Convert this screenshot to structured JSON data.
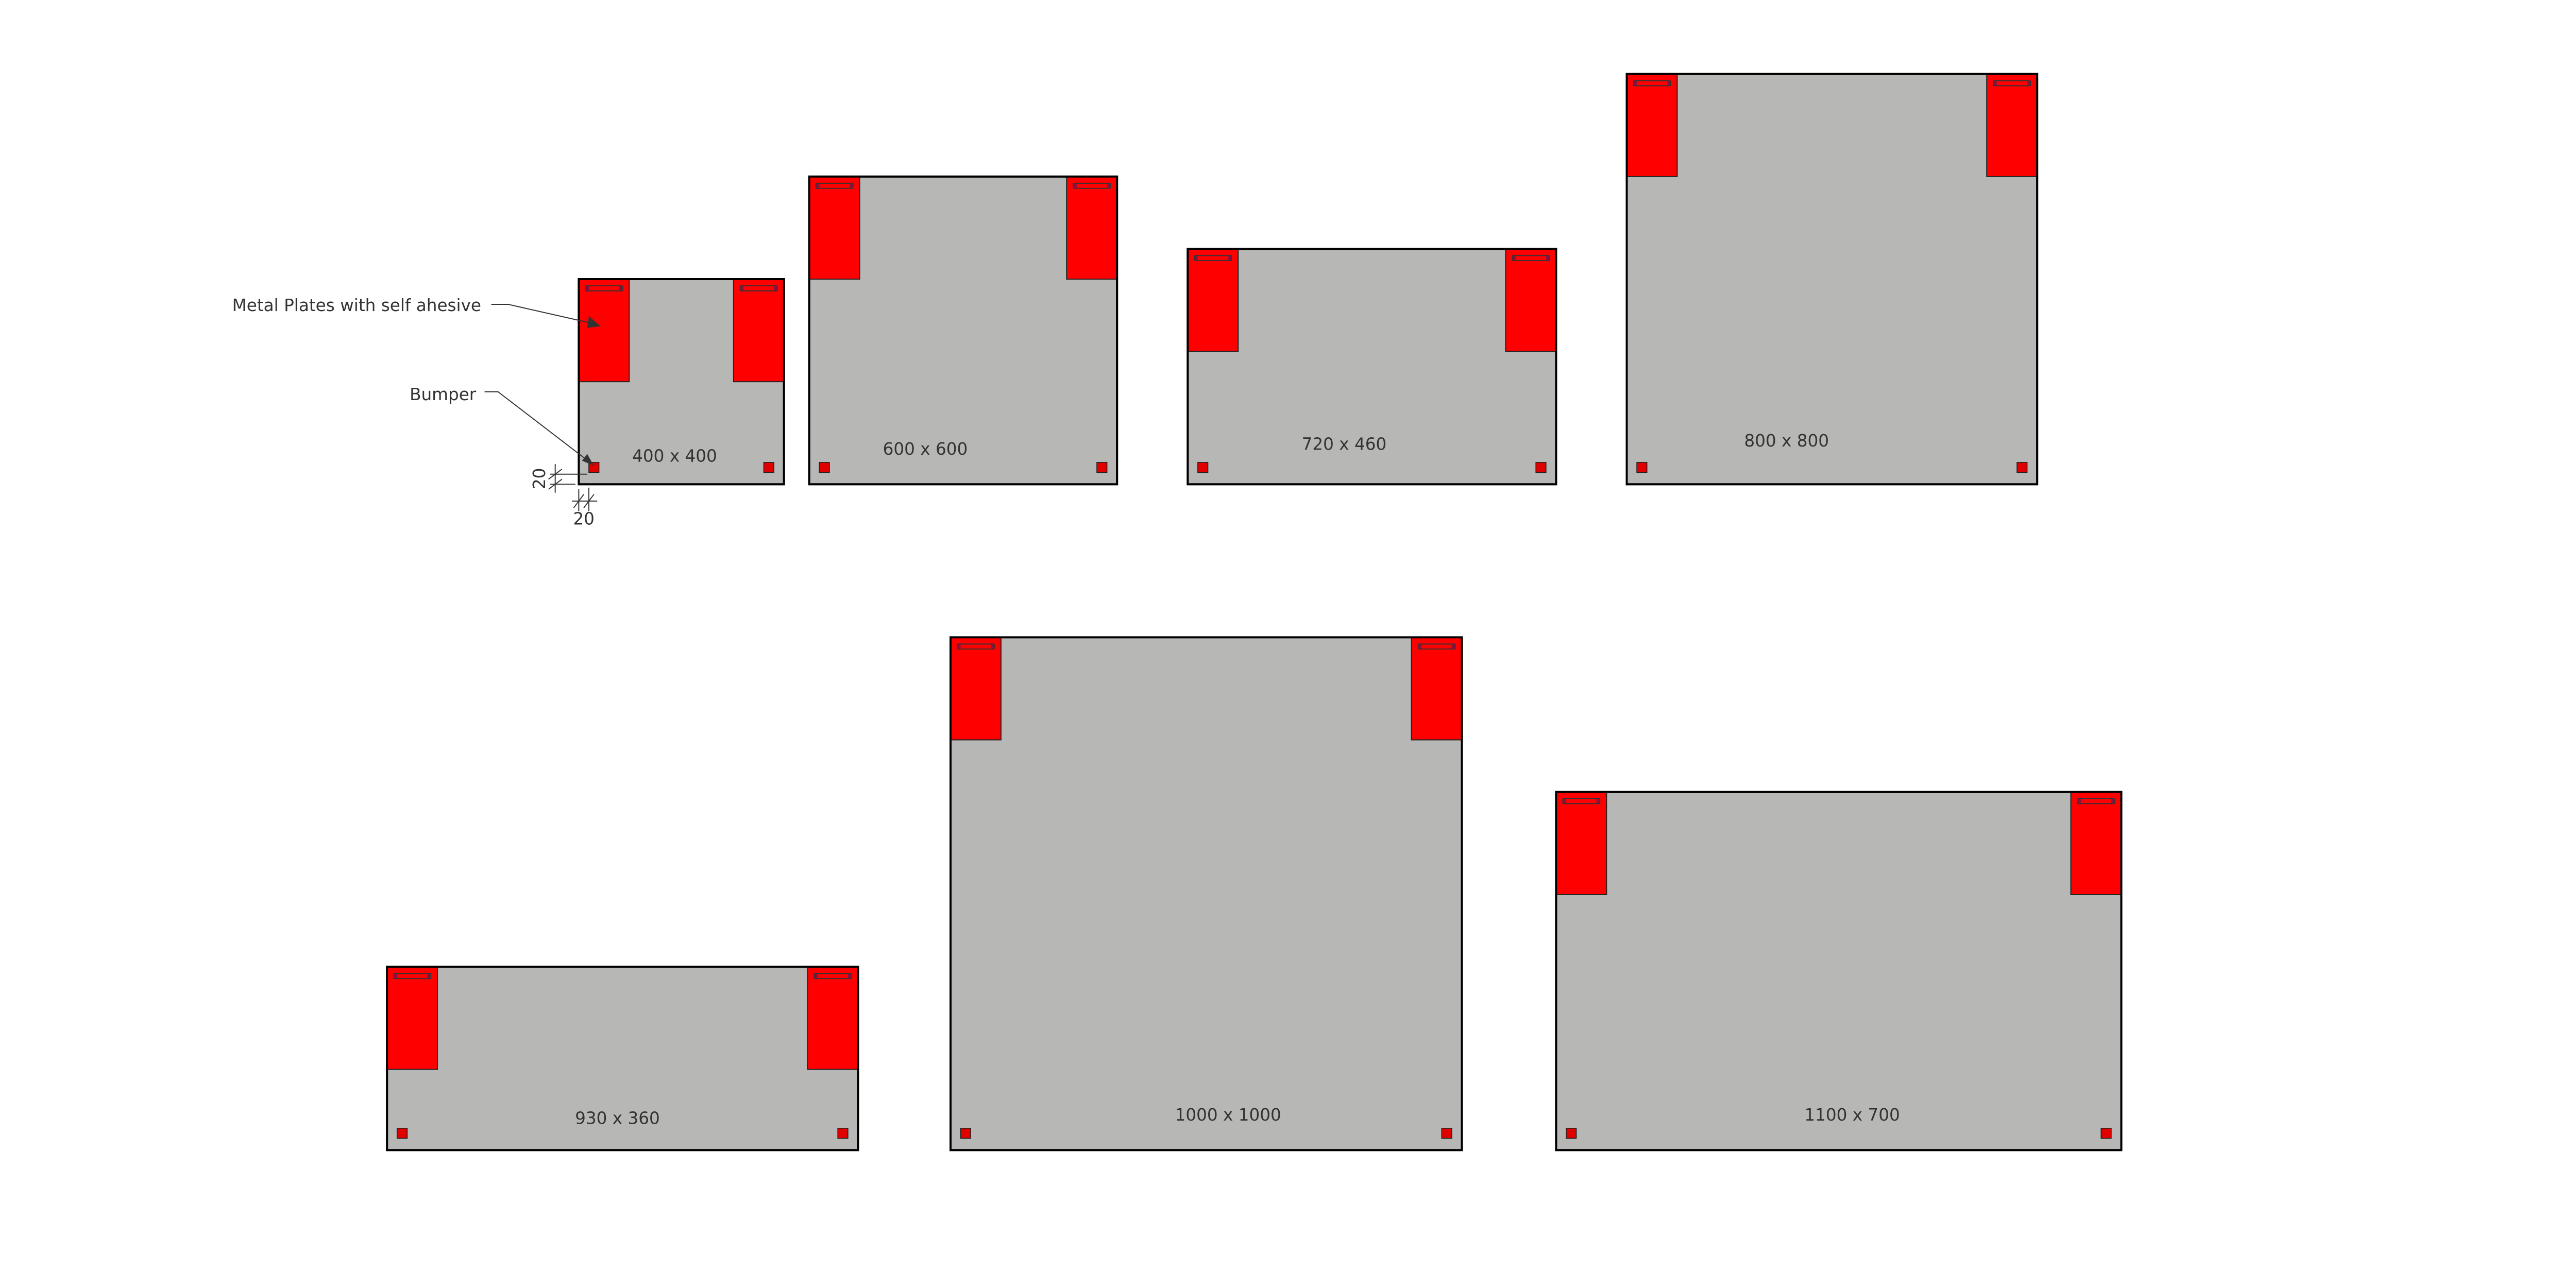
{
  "annotations": {
    "plates_label": "Metal Plates with self ahesive",
    "bumper_label": "Bumper",
    "dim_vertical": "20",
    "dim_horizontal": "20"
  },
  "panels": [
    {
      "label": "400 x 400"
    },
    {
      "label": "600 x 600"
    },
    {
      "label": "720 x 460"
    },
    {
      "label": "800 x 800"
    },
    {
      "label": "930 x 360"
    },
    {
      "label": "1000 x 1000"
    },
    {
      "label": "1100 x 700"
    }
  ],
  "colors": {
    "panel": "#b7b7b6",
    "plate": "#ff0000",
    "outline": "#000000"
  }
}
